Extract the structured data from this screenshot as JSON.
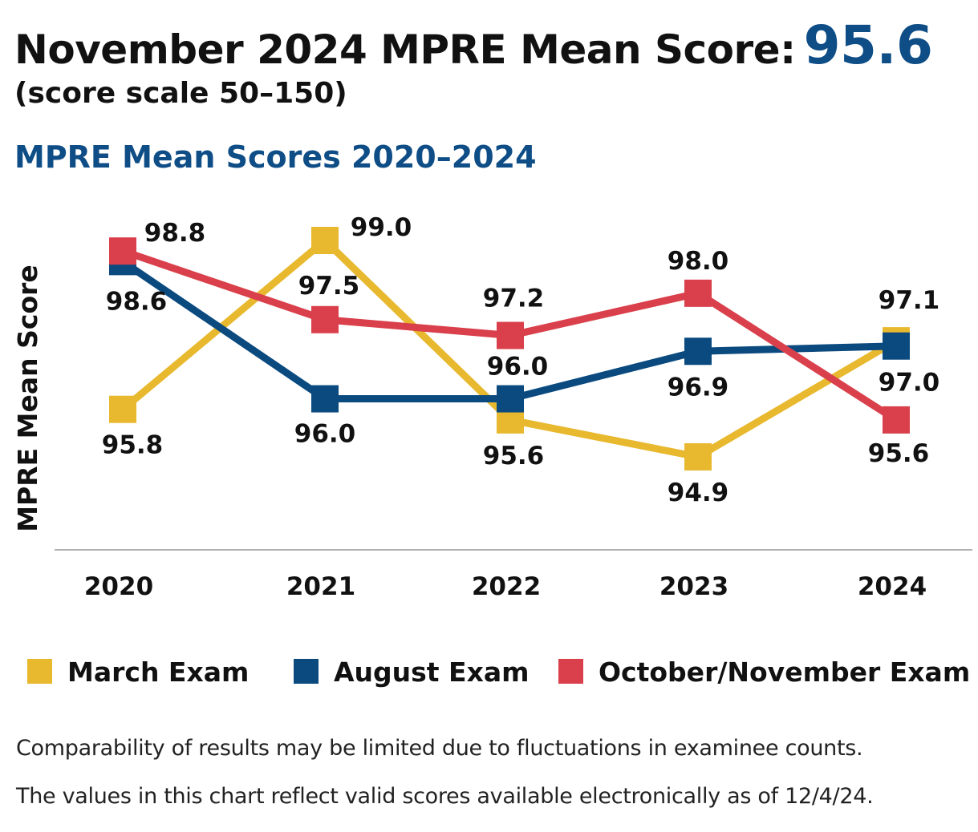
{
  "header": {
    "title": "November 2024 MPRE Mean Score:",
    "score": "95.6",
    "subtitle": "(score scale 50–150)",
    "chart_title": "MPRE Mean Scores 2020–2024"
  },
  "chart_data": {
    "type": "line",
    "title": "MPRE Mean Scores 2020–2024",
    "xlabel": "",
    "ylabel": "MPRE Mean Score",
    "categories": [
      "2020",
      "2021",
      "2022",
      "2023",
      "2024"
    ],
    "grid": false,
    "legend_position": "bottom",
    "series": [
      {
        "name": "March Exam",
        "color": "#E8B92F",
        "values": [
          95.8,
          99.0,
          95.6,
          94.9,
          97.1
        ]
      },
      {
        "name": "August Exam",
        "color": "#0B4A7F",
        "values": [
          98.6,
          96.0,
          96.0,
          96.9,
          97.0
        ]
      },
      {
        "name": "October/November Exam",
        "color": "#D9404B",
        "values": [
          98.8,
          97.5,
          97.2,
          98.0,
          95.6
        ]
      }
    ]
  },
  "notes": [
    "Comparability of results may be limited due to fluctuations in examinee counts.",
    "The values in this chart reflect valid scores available electronically as of 12/4/24."
  ]
}
